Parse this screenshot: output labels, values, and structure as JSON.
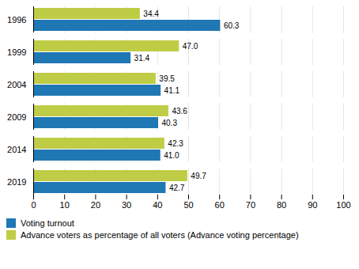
{
  "chart_data": {
    "type": "bar",
    "orientation": "horizontal",
    "categories": [
      "1996",
      "1999",
      "2004",
      "2009",
      "2014",
      "2019"
    ],
    "series": [
      {
        "name": "Voting turnout",
        "color": "#1F77B4",
        "values": [
          60.3,
          31.4,
          41.1,
          40.3,
          41.0,
          42.7
        ],
        "value_labels": [
          "60.3",
          "31.4",
          "41.1",
          "40.3",
          "41.0",
          "42.7"
        ]
      },
      {
        "name": "Advance voters as percentage of all voters (Advance voting percentage)",
        "color": "#BFCC45",
        "values": [
          34.4,
          47.0,
          39.5,
          43.6,
          42.3,
          49.7
        ],
        "value_labels": [
          "34.4",
          "47.0",
          "39.5",
          "43.6",
          "42.3",
          "49.7"
        ]
      }
    ],
    "xlim": [
      0,
      100
    ],
    "xticks": [
      0,
      10,
      20,
      30,
      40,
      50,
      60,
      70,
      80,
      90,
      100
    ],
    "grid": true,
    "data_labels": true,
    "legend": "bottom"
  }
}
